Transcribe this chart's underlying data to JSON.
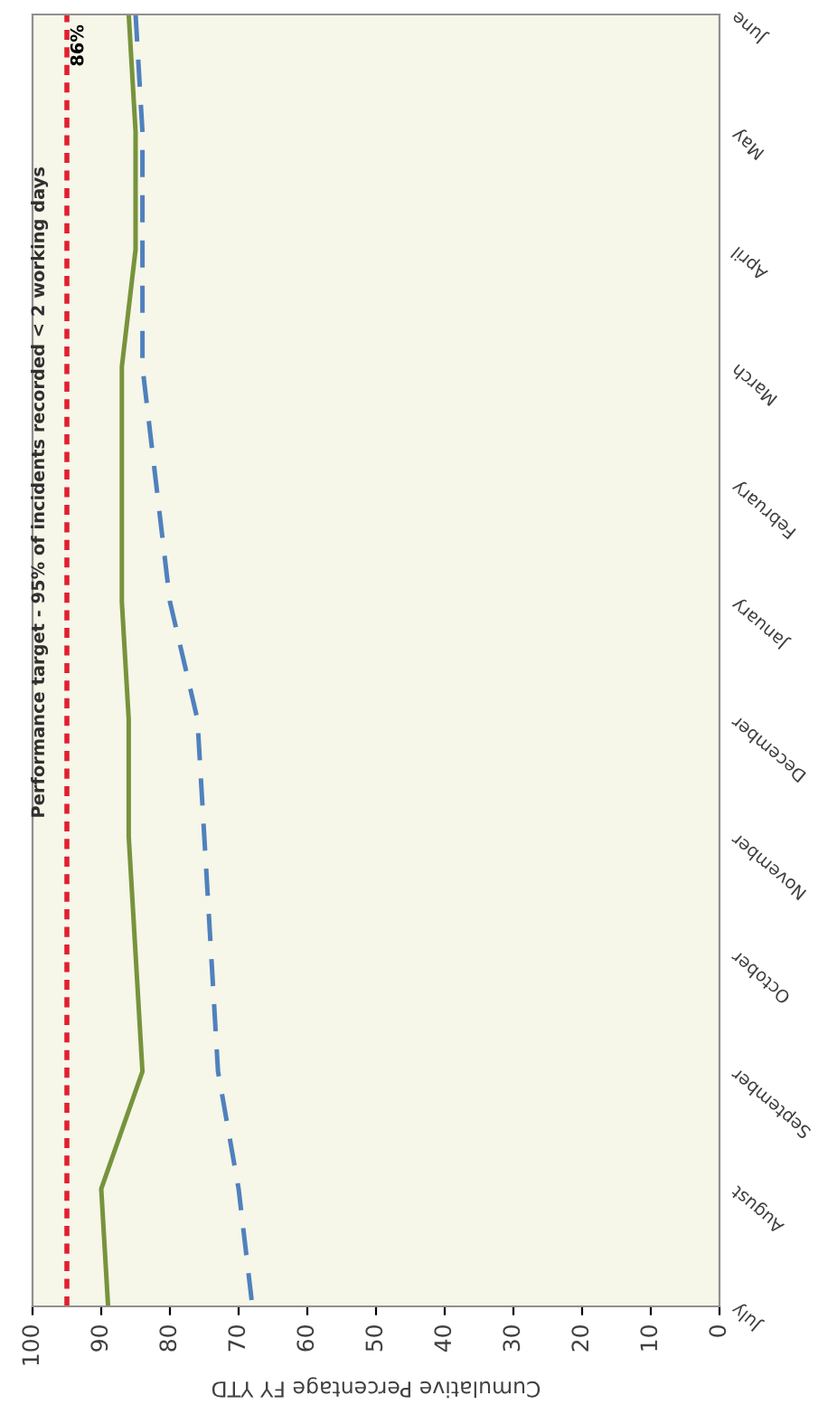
{
  "chart_data": {
    "type": "line",
    "orientation": "horizontal",
    "categories": [
      "June",
      "May",
      "April",
      "March",
      "February",
      "January",
      "December",
      "November",
      "October",
      "September",
      "August",
      "July"
    ],
    "xlim": [
      100,
      0
    ],
    "xticks": [
      100,
      90,
      80,
      70,
      60,
      50,
      40,
      30,
      20,
      10,
      0
    ],
    "xlabel": "Cumulative Percentage FY YTD",
    "series": [
      {
        "color": "#77933c",
        "line_style": "solid",
        "values": [
          86,
          85,
          85,
          87,
          87,
          87,
          86,
          86,
          85,
          84,
          90,
          89
        ],
        "value_labels": [
          "86%",
          null,
          null,
          null,
          null,
          null,
          null,
          null,
          null,
          null,
          null,
          null
        ]
      },
      {
        "color": "#4f81bd",
        "line_style": "dashed",
        "values": [
          85,
          84,
          84,
          84,
          82,
          80,
          76,
          75,
          74,
          73,
          70,
          68
        ]
      }
    ],
    "ref_lines": [
      {
        "axis": "x",
        "value": 95,
        "label": "Performance target - 95% of incidents recorded < 2 working days",
        "color": "#e0202f",
        "line_style": "dotted"
      }
    ]
  }
}
